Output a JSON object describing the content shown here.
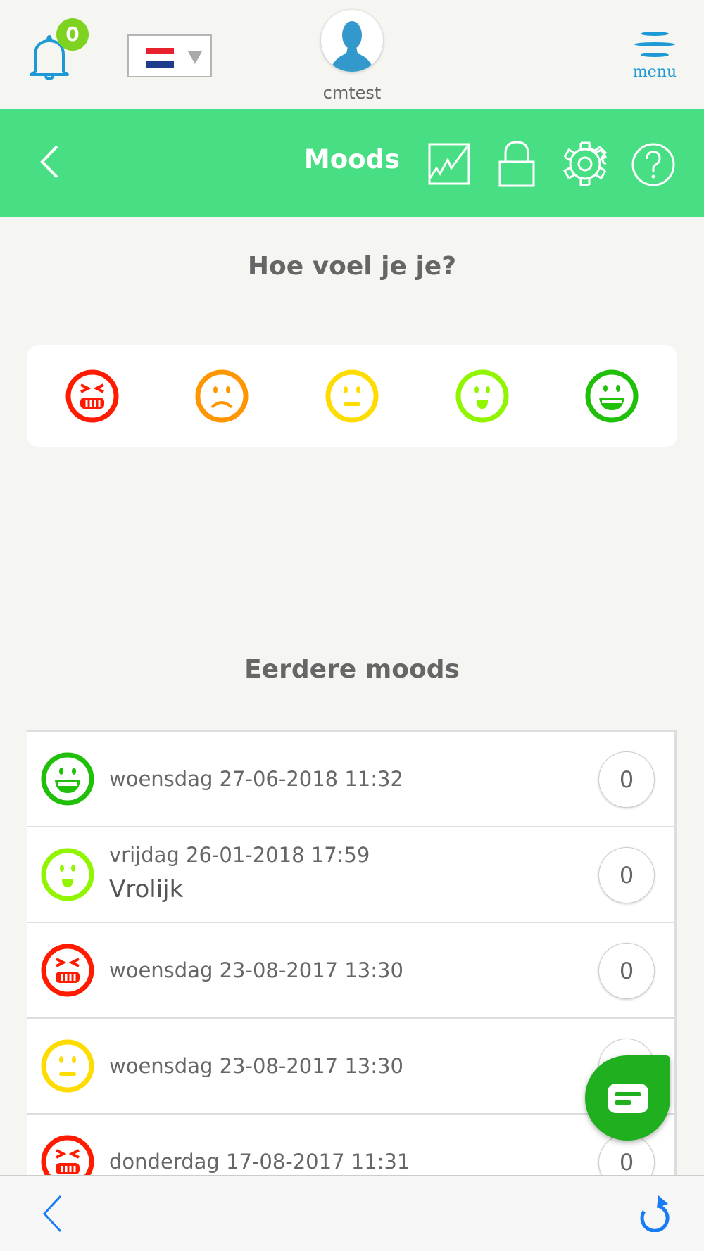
{
  "header": {
    "notification_count": "0",
    "username": "cmtest",
    "menu_label": "menu",
    "language": "nl"
  },
  "toolbar": {
    "title": "Moods",
    "icons": [
      "back-chevron-icon",
      "chart-icon",
      "lock-icon",
      "gear-icon",
      "help-icon"
    ]
  },
  "main": {
    "question": "Hoe voel je je?",
    "mood_options": [
      "angry",
      "sad",
      "neutral",
      "happy",
      "very-happy"
    ],
    "history_title": "Eerdere moods",
    "history": [
      {
        "mood": "very-happy",
        "date": "woensdag 27-06-2018 11:32",
        "note": "",
        "count": "0"
      },
      {
        "mood": "happy",
        "date": "vrijdag 26-01-2018 17:59",
        "note": "Vrolijk",
        "count": "0"
      },
      {
        "mood": "angry",
        "date": "woensdag 23-08-2017 13:30",
        "note": "",
        "count": "0"
      },
      {
        "mood": "neutral",
        "date": "woensdag 23-08-2017 13:30",
        "note": "",
        "count": "0"
      },
      {
        "mood": "angry",
        "date": "donderdag 17-08-2017 11:31",
        "note": "",
        "count": "0"
      }
    ]
  },
  "colors": {
    "toolbar": "#48de83",
    "angry": "#ff1a00",
    "sad": "#ff9500",
    "neutral": "#ffdc00",
    "happy": "#92f500",
    "very-happy": "#1fbf0a",
    "accent": "#1d9ad6",
    "fab": "#1faf1f"
  }
}
